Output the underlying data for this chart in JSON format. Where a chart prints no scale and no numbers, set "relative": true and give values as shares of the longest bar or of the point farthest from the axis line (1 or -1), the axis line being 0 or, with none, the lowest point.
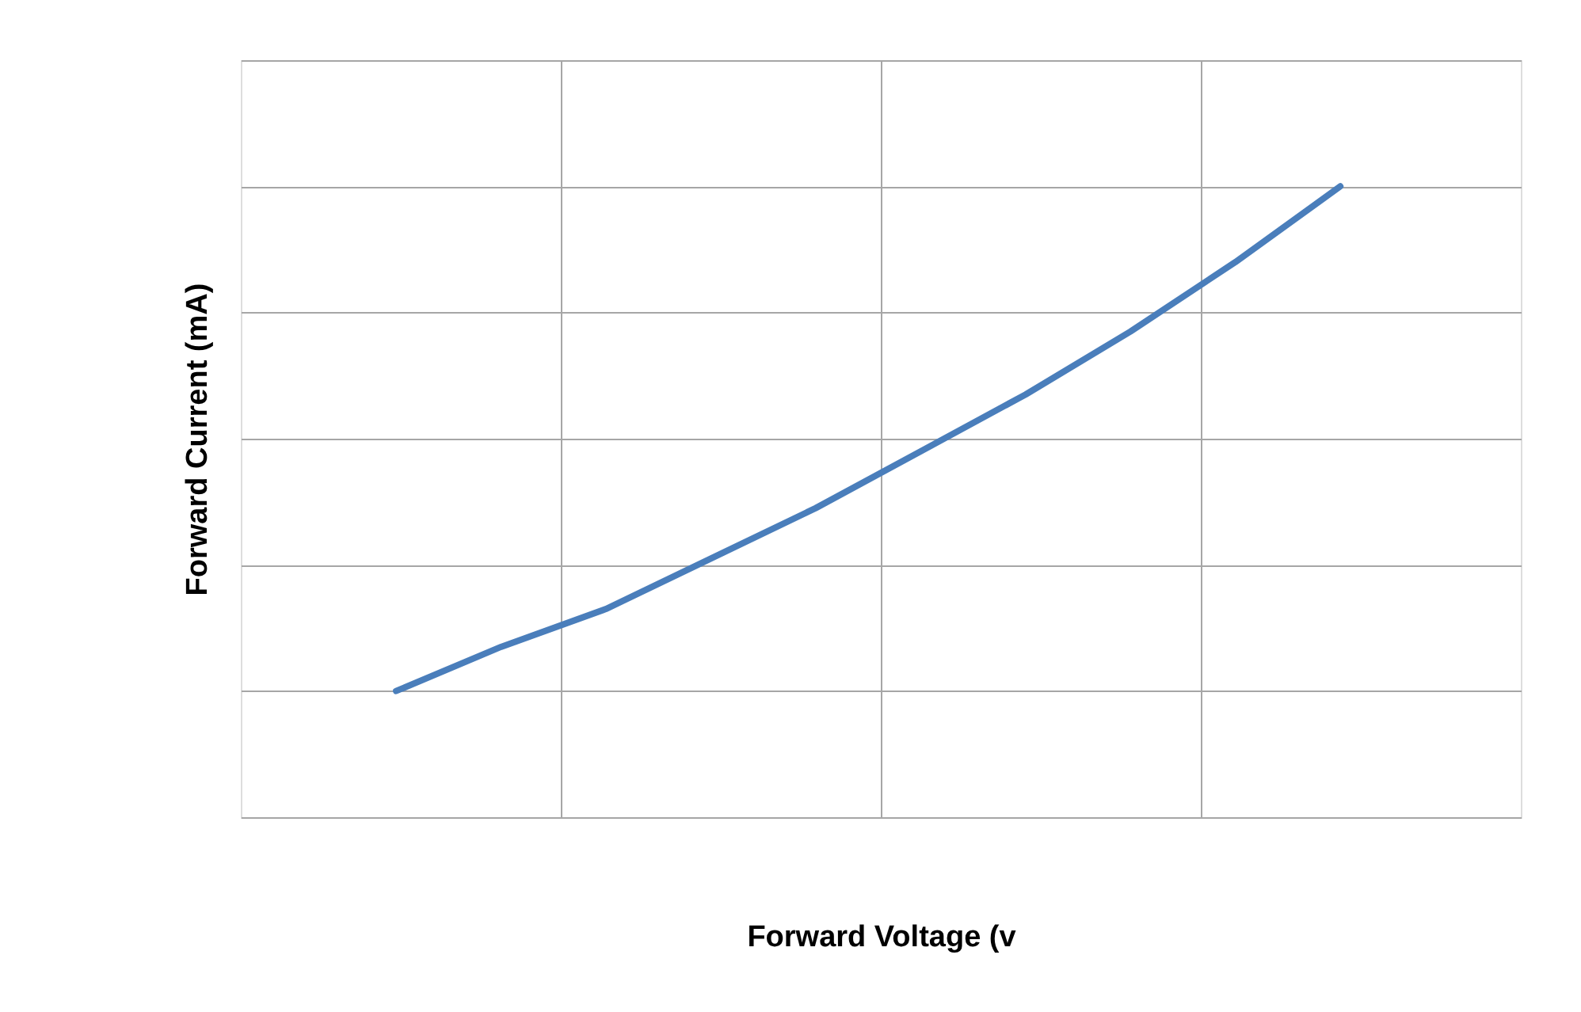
{
  "chart_data": {
    "type": "line",
    "relative": true,
    "xlabel": "Forward Voltage (v",
    "ylabel": "Forward Current  (mA)",
    "categories": [
      null,
      null,
      null,
      null,
      null,
      null,
      null,
      null,
      null,
      null
    ],
    "series": [
      {
        "color": "#4a7ebb",
        "values": [
          0.2,
          0.27,
          0.33,
          0.41,
          0.49,
          0.58,
          0.67,
          0.77,
          0.88,
          1.0
        ]
      }
    ],
    "grid": true,
    "marker": "none",
    "line_style": "solid"
  }
}
